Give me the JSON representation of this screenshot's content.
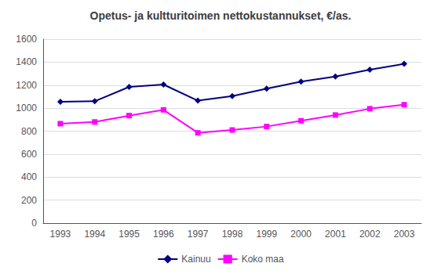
{
  "chart_data": {
    "type": "line",
    "title": "Opetus- ja kultturitoimen nettokustannukset, €/as.",
    "categories": [
      "1993",
      "1994",
      "1995",
      "1996",
      "1997",
      "1998",
      "1999",
      "2000",
      "2001",
      "2002",
      "2003"
    ],
    "series": [
      {
        "name": "Kainuu",
        "color": "#000080",
        "marker": "diamond",
        "line_style": "solid",
        "values": [
          1055,
          1060,
          1185,
          1205,
          1065,
          1105,
          1170,
          1230,
          1275,
          1335,
          1385
        ]
      },
      {
        "name": "Koko maa",
        "color": "#FF00FF",
        "marker": "square",
        "line_style": "solid",
        "values": [
          865,
          880,
          935,
          985,
          785,
          810,
          840,
          890,
          940,
          995,
          1030
        ]
      }
    ],
    "ylim": [
      0,
      1600
    ],
    "yticks": [
      0,
      200,
      400,
      600,
      800,
      1000,
      1200,
      1400,
      1600
    ],
    "grid": true,
    "legend": "bottom"
  }
}
